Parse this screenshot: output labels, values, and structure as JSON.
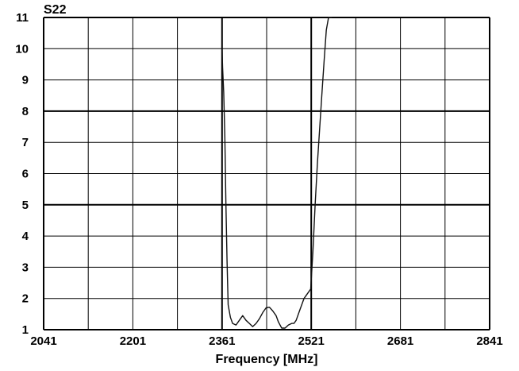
{
  "chart_data": {
    "type": "line",
    "title": "S22",
    "xlabel": "Frequency [MHz]",
    "ylabel": "",
    "xlim": [
      2041,
      2841
    ],
    "ylim": [
      1,
      11
    ],
    "xticks": [
      "2041",
      "2201",
      "2361",
      "2521",
      "2681",
      "2841"
    ],
    "yticks": [
      "1",
      "2",
      "3",
      "4",
      "5",
      "6",
      "7",
      "8",
      "9",
      "10",
      "11"
    ],
    "grid": true,
    "series": [
      {
        "x": [
          2361,
          2362,
          2364,
          2366,
          2368,
          2370,
          2372,
          2376,
          2380,
          2386,
          2392,
          2398,
          2404,
          2410,
          2416,
          2422,
          2428,
          2434,
          2440,
          2446,
          2452,
          2458,
          2462,
          2468,
          2474,
          2480,
          2486,
          2490,
          2494,
          2500,
          2508,
          2516,
          2520,
          2524,
          2528,
          2532,
          2536,
          2540,
          2544,
          2548,
          2552,
          2558
        ],
        "y": [
          10,
          9.4,
          8.6,
          7.2,
          5.0,
          3.2,
          1.8,
          1.4,
          1.2,
          1.15,
          1.3,
          1.45,
          1.3,
          1.2,
          1.1,
          1.2,
          1.35,
          1.55,
          1.7,
          1.72,
          1.6,
          1.45,
          1.25,
          1.05,
          1.05,
          1.15,
          1.2,
          1.2,
          1.3,
          1.6,
          2.0,
          2.2,
          2.3,
          3.5,
          5.0,
          6.3,
          7.4,
          8.5,
          9.6,
          10.6,
          11.0,
          11.0
        ]
      }
    ]
  }
}
